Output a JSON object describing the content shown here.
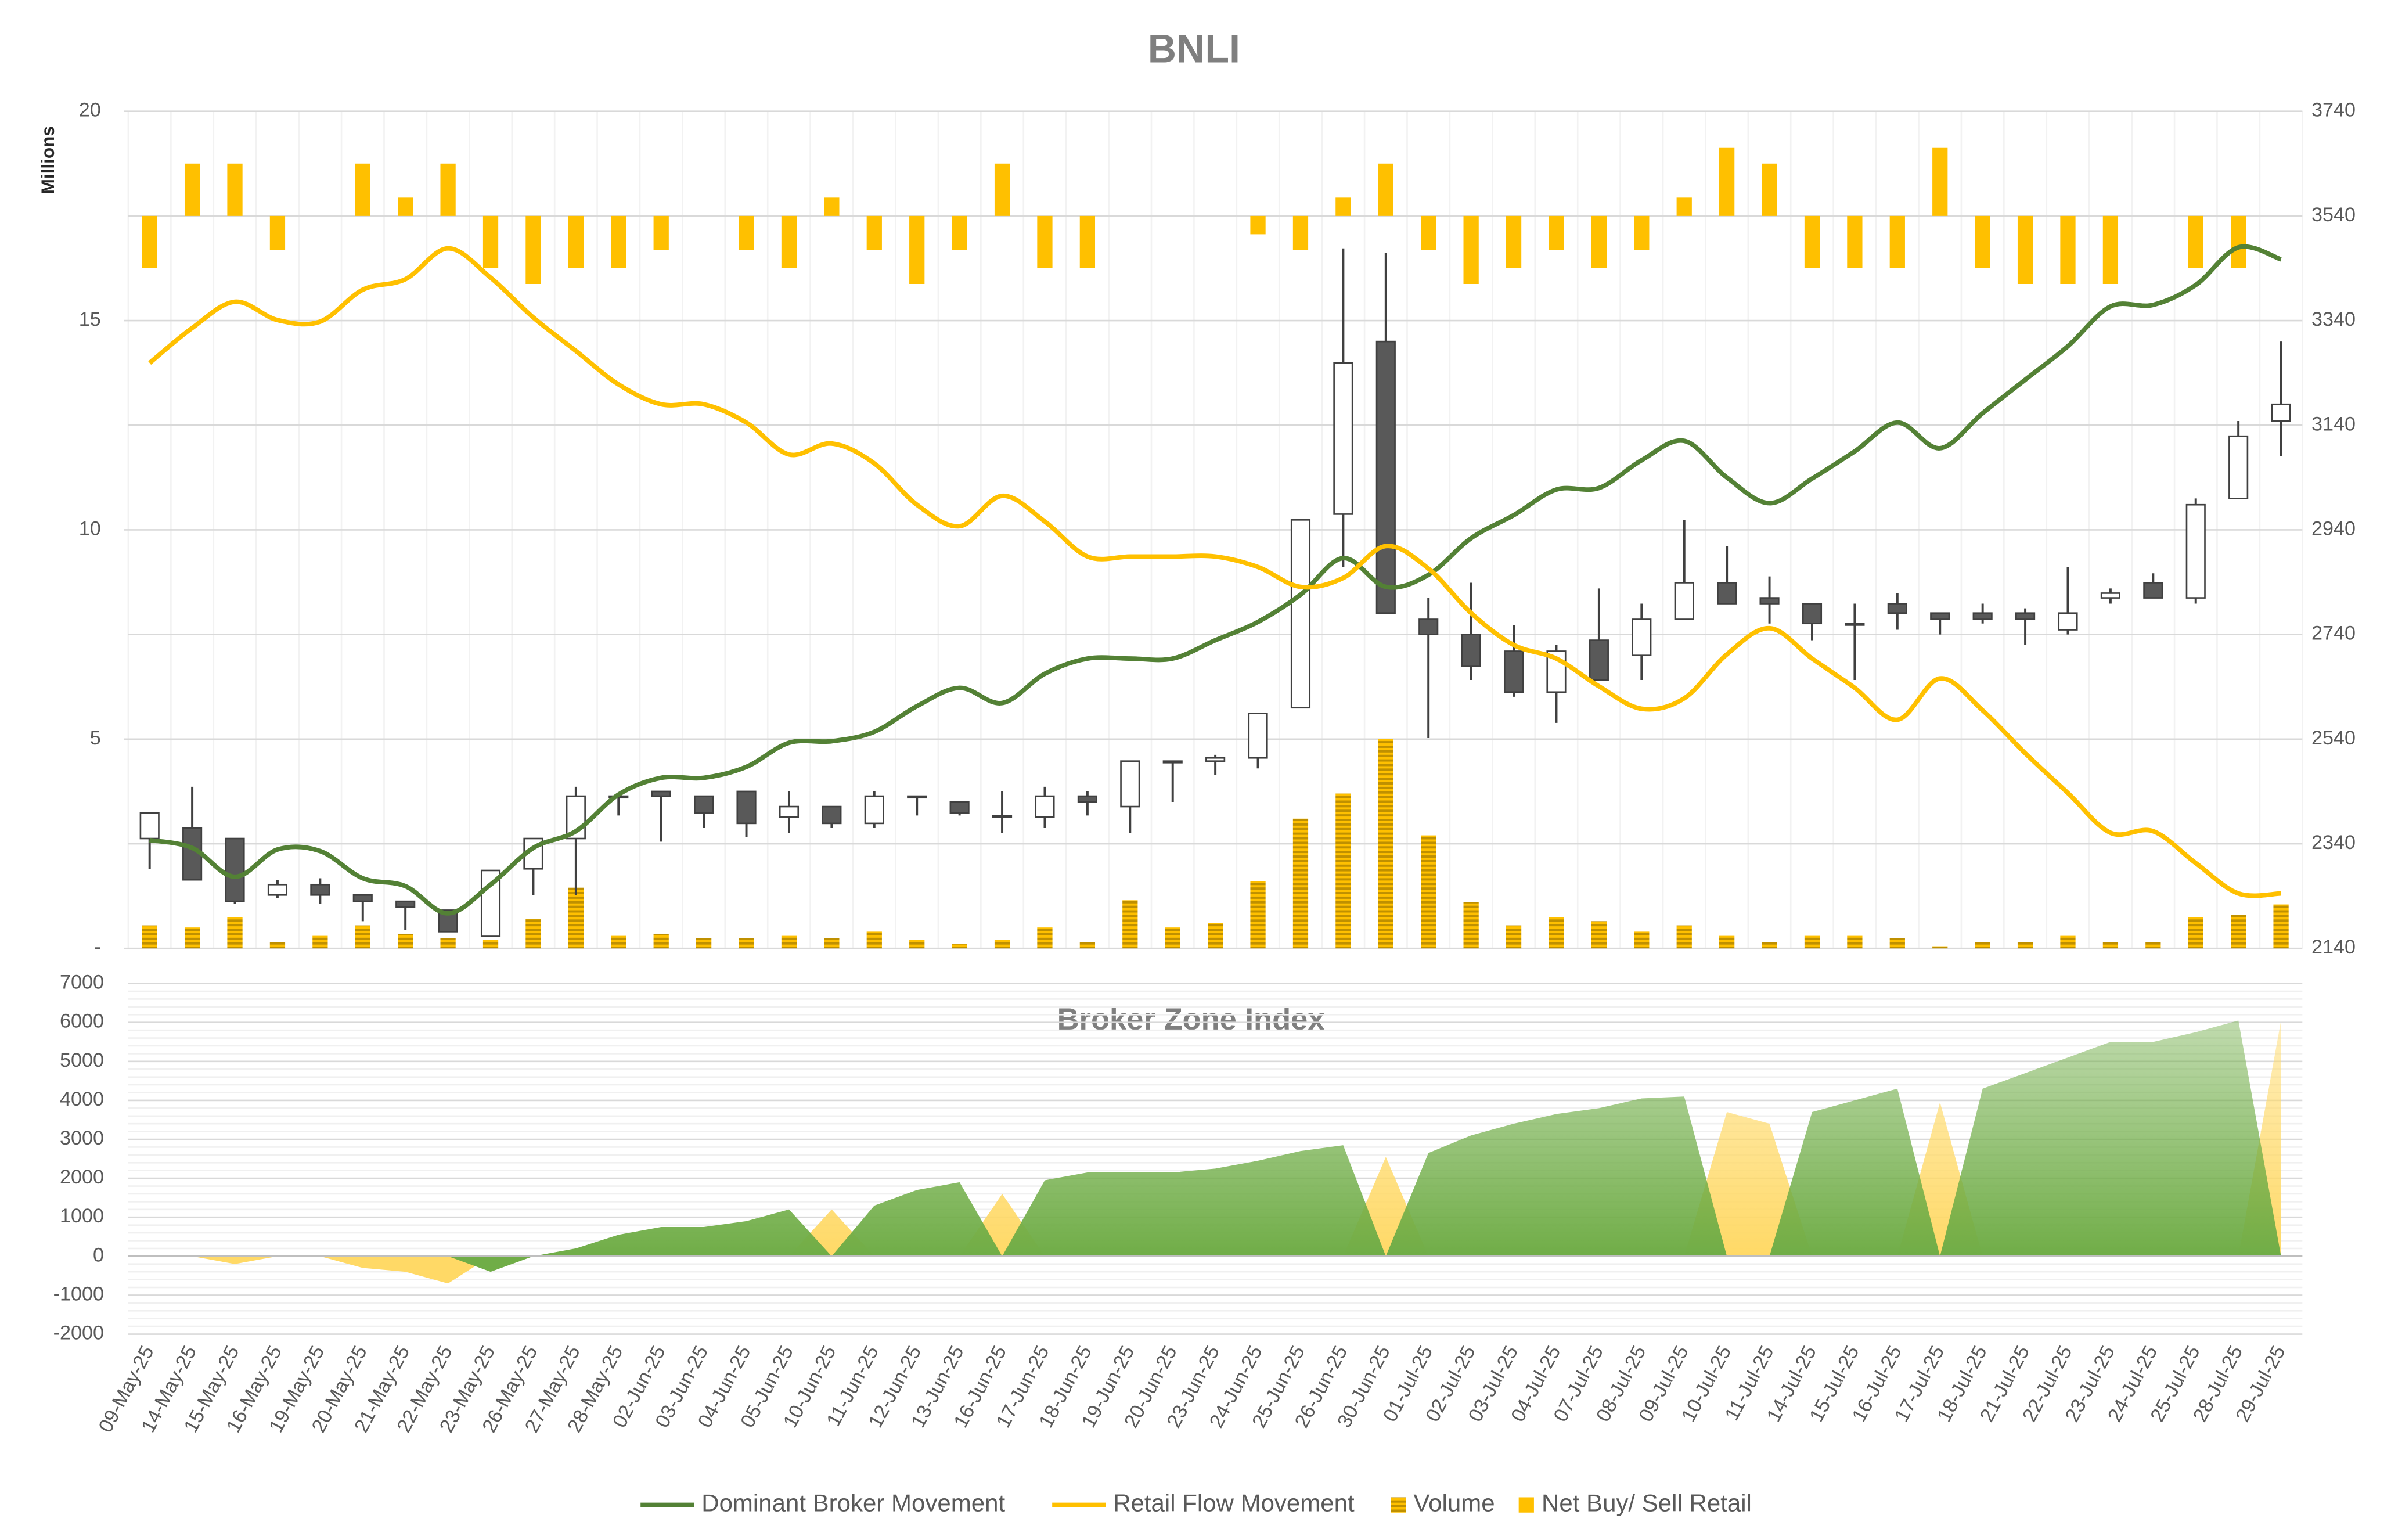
{
  "chart_data": [
    {
      "type": "candlestick",
      "title": "BNLI",
      "y_label": "Millions",
      "ylim": [
        0,
        20
      ],
      "yticks": [
        {
          "value": 0,
          "label": "-"
        },
        5,
        10,
        15,
        20
      ],
      "y2lim": [
        2140,
        3740
      ],
      "y2ticks": [
        2140,
        2340,
        2540,
        2740,
        2940,
        3140,
        3340,
        3540,
        3740
      ],
      "y3lim": [
        -14,
        2
      ],
      "grid": true,
      "legend": "bottom",
      "candles": {
        "axis": "y2",
        "up_color": "#ffffff",
        "down_color": "#595959",
        "open": [
          2350,
          2370,
          2350,
          2242,
          2262,
          2242,
          2230,
          2213,
          2163,
          2292,
          2350,
          2428,
          2440,
          2431,
          2440,
          2391,
          2411,
          2379,
          2431,
          2420,
          2394,
          2391,
          2431,
          2411,
          2496,
          2498,
          2504,
          2600,
          2970,
          3300,
          2769,
          2740,
          2708,
          2630,
          2729,
          2700,
          2769,
          2839,
          2810,
          2799,
          2761,
          2799,
          2781,
          2781,
          2781,
          2749,
          2810,
          2839,
          2810,
          3000,
          3148
        ],
        "high": [
          2399,
          2449,
          2350,
          2271,
          2274,
          2242,
          2230,
          2213,
          2289,
          2350,
          2449,
          2431,
          2440,
          2431,
          2440,
          2440,
          2411,
          2440,
          2431,
          2420,
          2440,
          2449,
          2440,
          2498,
          2498,
          2510,
          2589,
          2959,
          3478,
          3469,
          2810,
          2839,
          2758,
          2720,
          2828,
          2799,
          2959,
          2909,
          2851,
          2799,
          2799,
          2819,
          2781,
          2799,
          2790,
          2869,
          2828,
          2857,
          3000,
          3148,
          3300
        ],
        "low": [
          2292,
          2271,
          2225,
          2236,
          2225,
          2192,
          2175,
          2172,
          2163,
          2242,
          2242,
          2394,
          2344,
          2370,
          2353,
          2361,
          2370,
          2370,
          2394,
          2394,
          2361,
          2370,
          2394,
          2361,
          2420,
          2472,
          2484,
          2600,
          2869,
          2781,
          2542,
          2653,
          2621,
          2571,
          2653,
          2653,
          2769,
          2799,
          2761,
          2729,
          2653,
          2749,
          2740,
          2761,
          2720,
          2740,
          2799,
          2810,
          2799,
          3000,
          3081
        ],
        "close": [
          2399,
          2271,
          2230,
          2262,
          2242,
          2230,
          2219,
          2172,
          2289,
          2350,
          2431,
          2431,
          2431,
          2399,
          2379,
          2411,
          2379,
          2431,
          2428,
          2399,
          2391,
          2431,
          2420,
          2498,
          2498,
          2504,
          2589,
          2959,
          3259,
          2781,
          2740,
          2679,
          2630,
          2708,
          2653,
          2769,
          2839,
          2799,
          2799,
          2761,
          2758,
          2781,
          2769,
          2769,
          2769,
          2781,
          2819,
          2810,
          2988,
          3119,
          3180
        ]
      },
      "series": [
        {
          "name": "Dominant Broker Movement",
          "type": "line",
          "axis": "y2",
          "color": "#538135",
          "values": [
            2347,
            2332,
            2277,
            2329,
            2326,
            2274,
            2259,
            2207,
            2262,
            2332,
            2364,
            2434,
            2466,
            2466,
            2487,
            2533,
            2536,
            2554,
            2603,
            2638,
            2609,
            2665,
            2694,
            2694,
            2694,
            2729,
            2764,
            2816,
            2886,
            2831,
            2854,
            2924,
            2968,
            3017,
            3020,
            3073,
            3110,
            3040,
            2991,
            3038,
            3090,
            3145,
            3096,
            3163,
            3227,
            3291,
            3367,
            3370,
            3408,
            3480,
            3457
          ]
        },
        {
          "name": "Retail Flow Movement",
          "type": "line",
          "axis": "y2",
          "color": "#ffc000",
          "values": [
            3259,
            3326,
            3376,
            3341,
            3338,
            3399,
            3419,
            3478,
            3422,
            3346,
            3282,
            3218,
            3180,
            3180,
            3145,
            3084,
            3105,
            3067,
            2988,
            2947,
            3005,
            2956,
            2889,
            2889,
            2889,
            2889,
            2869,
            2831,
            2848,
            2909,
            2866,
            2781,
            2720,
            2694,
            2641,
            2598,
            2618,
            2702,
            2752,
            2694,
            2638,
            2577,
            2656,
            2595,
            2513,
            2437,
            2361,
            2364,
            2303,
            2245,
            2245
          ]
        },
        {
          "name": "Volume",
          "type": "bar",
          "color": "#bf9000",
          "hatch": true,
          "values": [
            0.55,
            0.5,
            0.75,
            0.15,
            0.3,
            0.55,
            0.35,
            0.25,
            0.2,
            0.7,
            1.45,
            0.3,
            0.35,
            0.25,
            0.25,
            0.3,
            0.25,
            0.4,
            0.2,
            0.1,
            0.2,
            0.5,
            0.15,
            1.15,
            0.5,
            0.6,
            1.6,
            3.1,
            3.7,
            5,
            2.7,
            1.1,
            0.55,
            0.75,
            0.65,
            0.4,
            0.55,
            0.3,
            0.15,
            0.3,
            0.3,
            0.25,
            0.05,
            0.15,
            0.15,
            0.3,
            0.15,
            0.15,
            0.75,
            0.8,
            1.05
          ]
        },
        {
          "name": "Net Buy/ Sell Retail",
          "type": "bar",
          "axis": "y3",
          "color": "#ffc000",
          "values": [
            -1,
            1,
            1,
            -0.65,
            0,
            1,
            0.35,
            1,
            -1,
            -1.3,
            -1,
            -1,
            -0.65,
            0,
            -0.65,
            -1,
            0.35,
            -0.65,
            -1.3,
            -0.65,
            1,
            -1,
            -1,
            0,
            0,
            0,
            -0.35,
            -0.65,
            0.35,
            1,
            -0.65,
            -1.3,
            -1,
            -0.65,
            -1,
            -0.65,
            0.35,
            1.3,
            1,
            -1,
            -1,
            -1,
            1.3,
            -1,
            -1.3,
            -1.3,
            -1.3,
            0,
            -1,
            -1,
            0
          ]
        }
      ]
    },
    {
      "type": "area",
      "title": "Broker Zone Index",
      "categories": [
        "09-May-25",
        "14-May-25",
        "15-May-25",
        "16-May-25",
        "19-May-25",
        "20-May-25",
        "21-May-25",
        "22-May-25",
        "23-May-25",
        "26-May-25",
        "27-May-25",
        "28-May-25",
        "02-Jun-25",
        "03-Jun-25",
        "04-Jun-25",
        "05-Jun-25",
        "10-Jun-25",
        "11-Jun-25",
        "12-Jun-25",
        "13-Jun-25",
        "16-Jun-25",
        "17-Jun-25",
        "18-Jun-25",
        "19-Jun-25",
        "20-Jun-25",
        "23-Jun-25",
        "24-Jun-25",
        "25-Jun-25",
        "26-Jun-25",
        "30-Jun-25",
        "01-Jul-25",
        "02-Jul-25",
        "03-Jul-25",
        "04-Jul-25",
        "07-Jul-25",
        "08-Jul-25",
        "09-Jul-25",
        "10-Jul-25",
        "11-Jul-25",
        "14-Jul-25",
        "15-Jul-25",
        "16-Jul-25",
        "17-Jul-25",
        "18-Jul-25",
        "21-Jul-25",
        "22-Jul-25",
        "23-Jul-25",
        "24-Jul-25",
        "25-Jul-25",
        "28-Jul-25",
        "29-Jul-25"
      ],
      "ylim": [
        -2000,
        7000
      ],
      "yticks": [
        -2000,
        -1000,
        0,
        1000,
        2000,
        3000,
        4000,
        5000,
        6000,
        7000
      ],
      "grid": true,
      "series": [
        {
          "color": "#ffd966",
          "values": [
            0,
            0,
            -200,
            0,
            0,
            -300,
            -400,
            -700,
            0,
            0,
            0,
            0,
            0,
            0,
            0,
            0,
            1200,
            0,
            0,
            0,
            1600,
            0,
            0,
            0,
            0,
            0,
            0,
            0,
            0,
            2550,
            0,
            0,
            0,
            0,
            0,
            0,
            0,
            3700,
            3400,
            0,
            0,
            0,
            3950,
            0,
            0,
            0,
            0,
            0,
            0,
            0,
            6050
          ]
        },
        {
          "color": "#70ad47",
          "values": [
            0,
            0,
            0,
            0,
            0,
            0,
            0,
            0,
            -400,
            0,
            200,
            550,
            750,
            750,
            900,
            1200,
            0,
            1300,
            1700,
            1900,
            0,
            1950,
            2150,
            2150,
            2150,
            2250,
            2450,
            2700,
            2850,
            0,
            2650,
            3100,
            3400,
            3650,
            3800,
            4050,
            4100,
            0,
            0,
            3700,
            4000,
            4300,
            0,
            4300,
            4700,
            5100,
            5500,
            5500,
            5750,
            6050,
            0
          ]
        }
      ]
    }
  ]
}
